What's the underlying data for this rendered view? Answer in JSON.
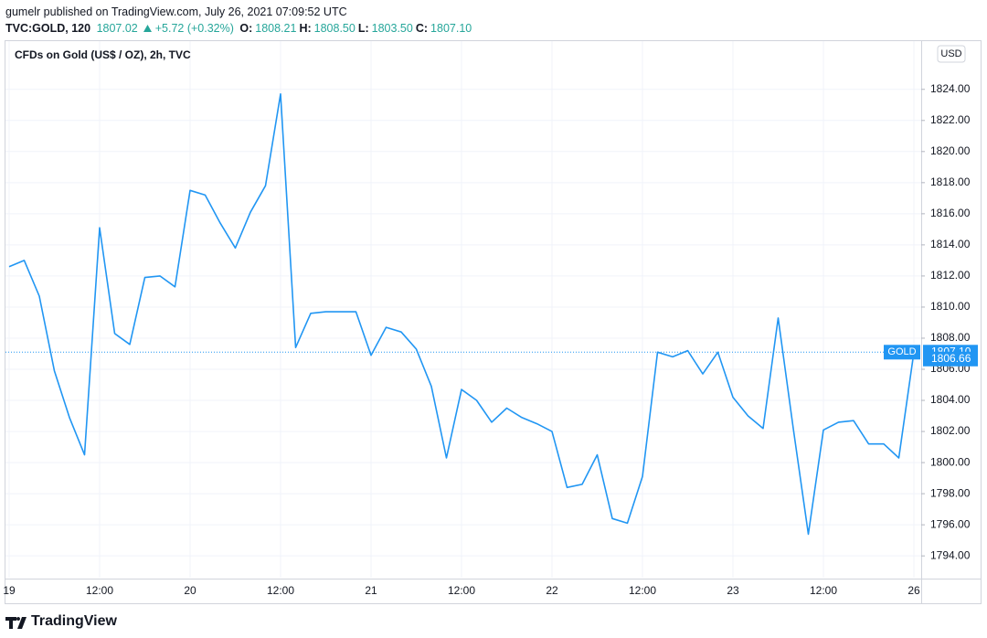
{
  "header": {
    "publisher": "gumelr published on TradingView.com, July 26, 2021 07:09:52 UTC",
    "symbol": "TVC:GOLD, 120",
    "last": "1807.02",
    "change": "+5.72 (+0.32%)",
    "ohlc": [
      {
        "key": "O:",
        "value": "1808.21"
      },
      {
        "key": "H:",
        "value": "1808.50"
      },
      {
        "key": "L:",
        "value": "1803.50"
      },
      {
        "key": "C:",
        "value": "1807.10"
      }
    ]
  },
  "brand": "TradingView",
  "chart_data": {
    "type": "line",
    "title": "CFDs on Gold (US$ / OZ), 2h, TVC",
    "currency": "USD",
    "categories": [
      "19",
      null,
      null,
      null,
      null,
      null,
      "12:00",
      null,
      null,
      null,
      null,
      null,
      "20",
      null,
      null,
      null,
      null,
      null,
      "12:00",
      null,
      null,
      null,
      null,
      null,
      "21",
      null,
      null,
      null,
      null,
      null,
      "12:00",
      null,
      null,
      null,
      null,
      null,
      "22",
      null,
      null,
      null,
      null,
      null,
      "12:00",
      null,
      null,
      null,
      null,
      null,
      "23",
      null,
      null,
      null,
      null,
      null,
      "12:00",
      null,
      null,
      null,
      null,
      null,
      "26"
    ],
    "series": [
      {
        "name": "GOLD",
        "color": "#2196f3",
        "values": [
          1812.6,
          1813.0,
          1810.7,
          1805.9,
          1802.9,
          1800.5,
          1815.1,
          1808.3,
          1807.6,
          1811.9,
          1812.0,
          1811.3,
          1817.5,
          1817.2,
          1815.4,
          1813.8,
          1816.1,
          1817.8,
          1823.7,
          1807.4,
          1809.6,
          1809.7,
          1809.7,
          1809.7,
          1806.9,
          1808.7,
          1808.4,
          1807.3,
          1804.9,
          1800.3,
          1804.7,
          1804.0,
          1802.6,
          1803.5,
          1802.9,
          1802.5,
          1802.0,
          1798.4,
          1798.6,
          1800.5,
          1796.4,
          1796.1,
          1799.1,
          1807.1,
          1806.8,
          1807.2,
          1805.7,
          1807.1,
          1804.2,
          1803.0,
          1802.2,
          1809.3,
          1802.2,
          1795.4,
          1802.1,
          1802.6,
          1802.7,
          1801.2,
          1801.2,
          1800.3,
          1807.1
        ]
      }
    ],
    "price_labels": [
      {
        "name": "GOLD",
        "value": 1807.1,
        "label": "1807.10"
      },
      {
        "value": 1806.66,
        "label": "1806.66"
      }
    ],
    "ylim": [
      1792.6,
      1827.1
    ],
    "yticks": [
      {
        "value": 1794,
        "label": "1794.00"
      },
      {
        "value": 1796,
        "label": "1796.00"
      },
      {
        "value": 1798,
        "label": "1798.00"
      },
      {
        "value": 1800,
        "label": "1800.00"
      },
      {
        "value": 1802,
        "label": "1802.00"
      },
      {
        "value": 1804,
        "label": "1804.00"
      },
      {
        "value": 1806,
        "label": "1806.00"
      },
      {
        "value": 1808,
        "label": "1808.00"
      },
      {
        "value": 1810,
        "label": "1810.00"
      },
      {
        "value": 1812,
        "label": "1812.00"
      },
      {
        "value": 1814,
        "label": "1814.00"
      },
      {
        "value": 1816,
        "label": "1816.00"
      },
      {
        "value": 1818,
        "label": "1818.00"
      },
      {
        "value": 1820,
        "label": "1820.00"
      },
      {
        "value": 1822,
        "label": "1822.00"
      },
      {
        "value": 1824,
        "label": "1824.00"
      }
    ],
    "grid": true
  }
}
